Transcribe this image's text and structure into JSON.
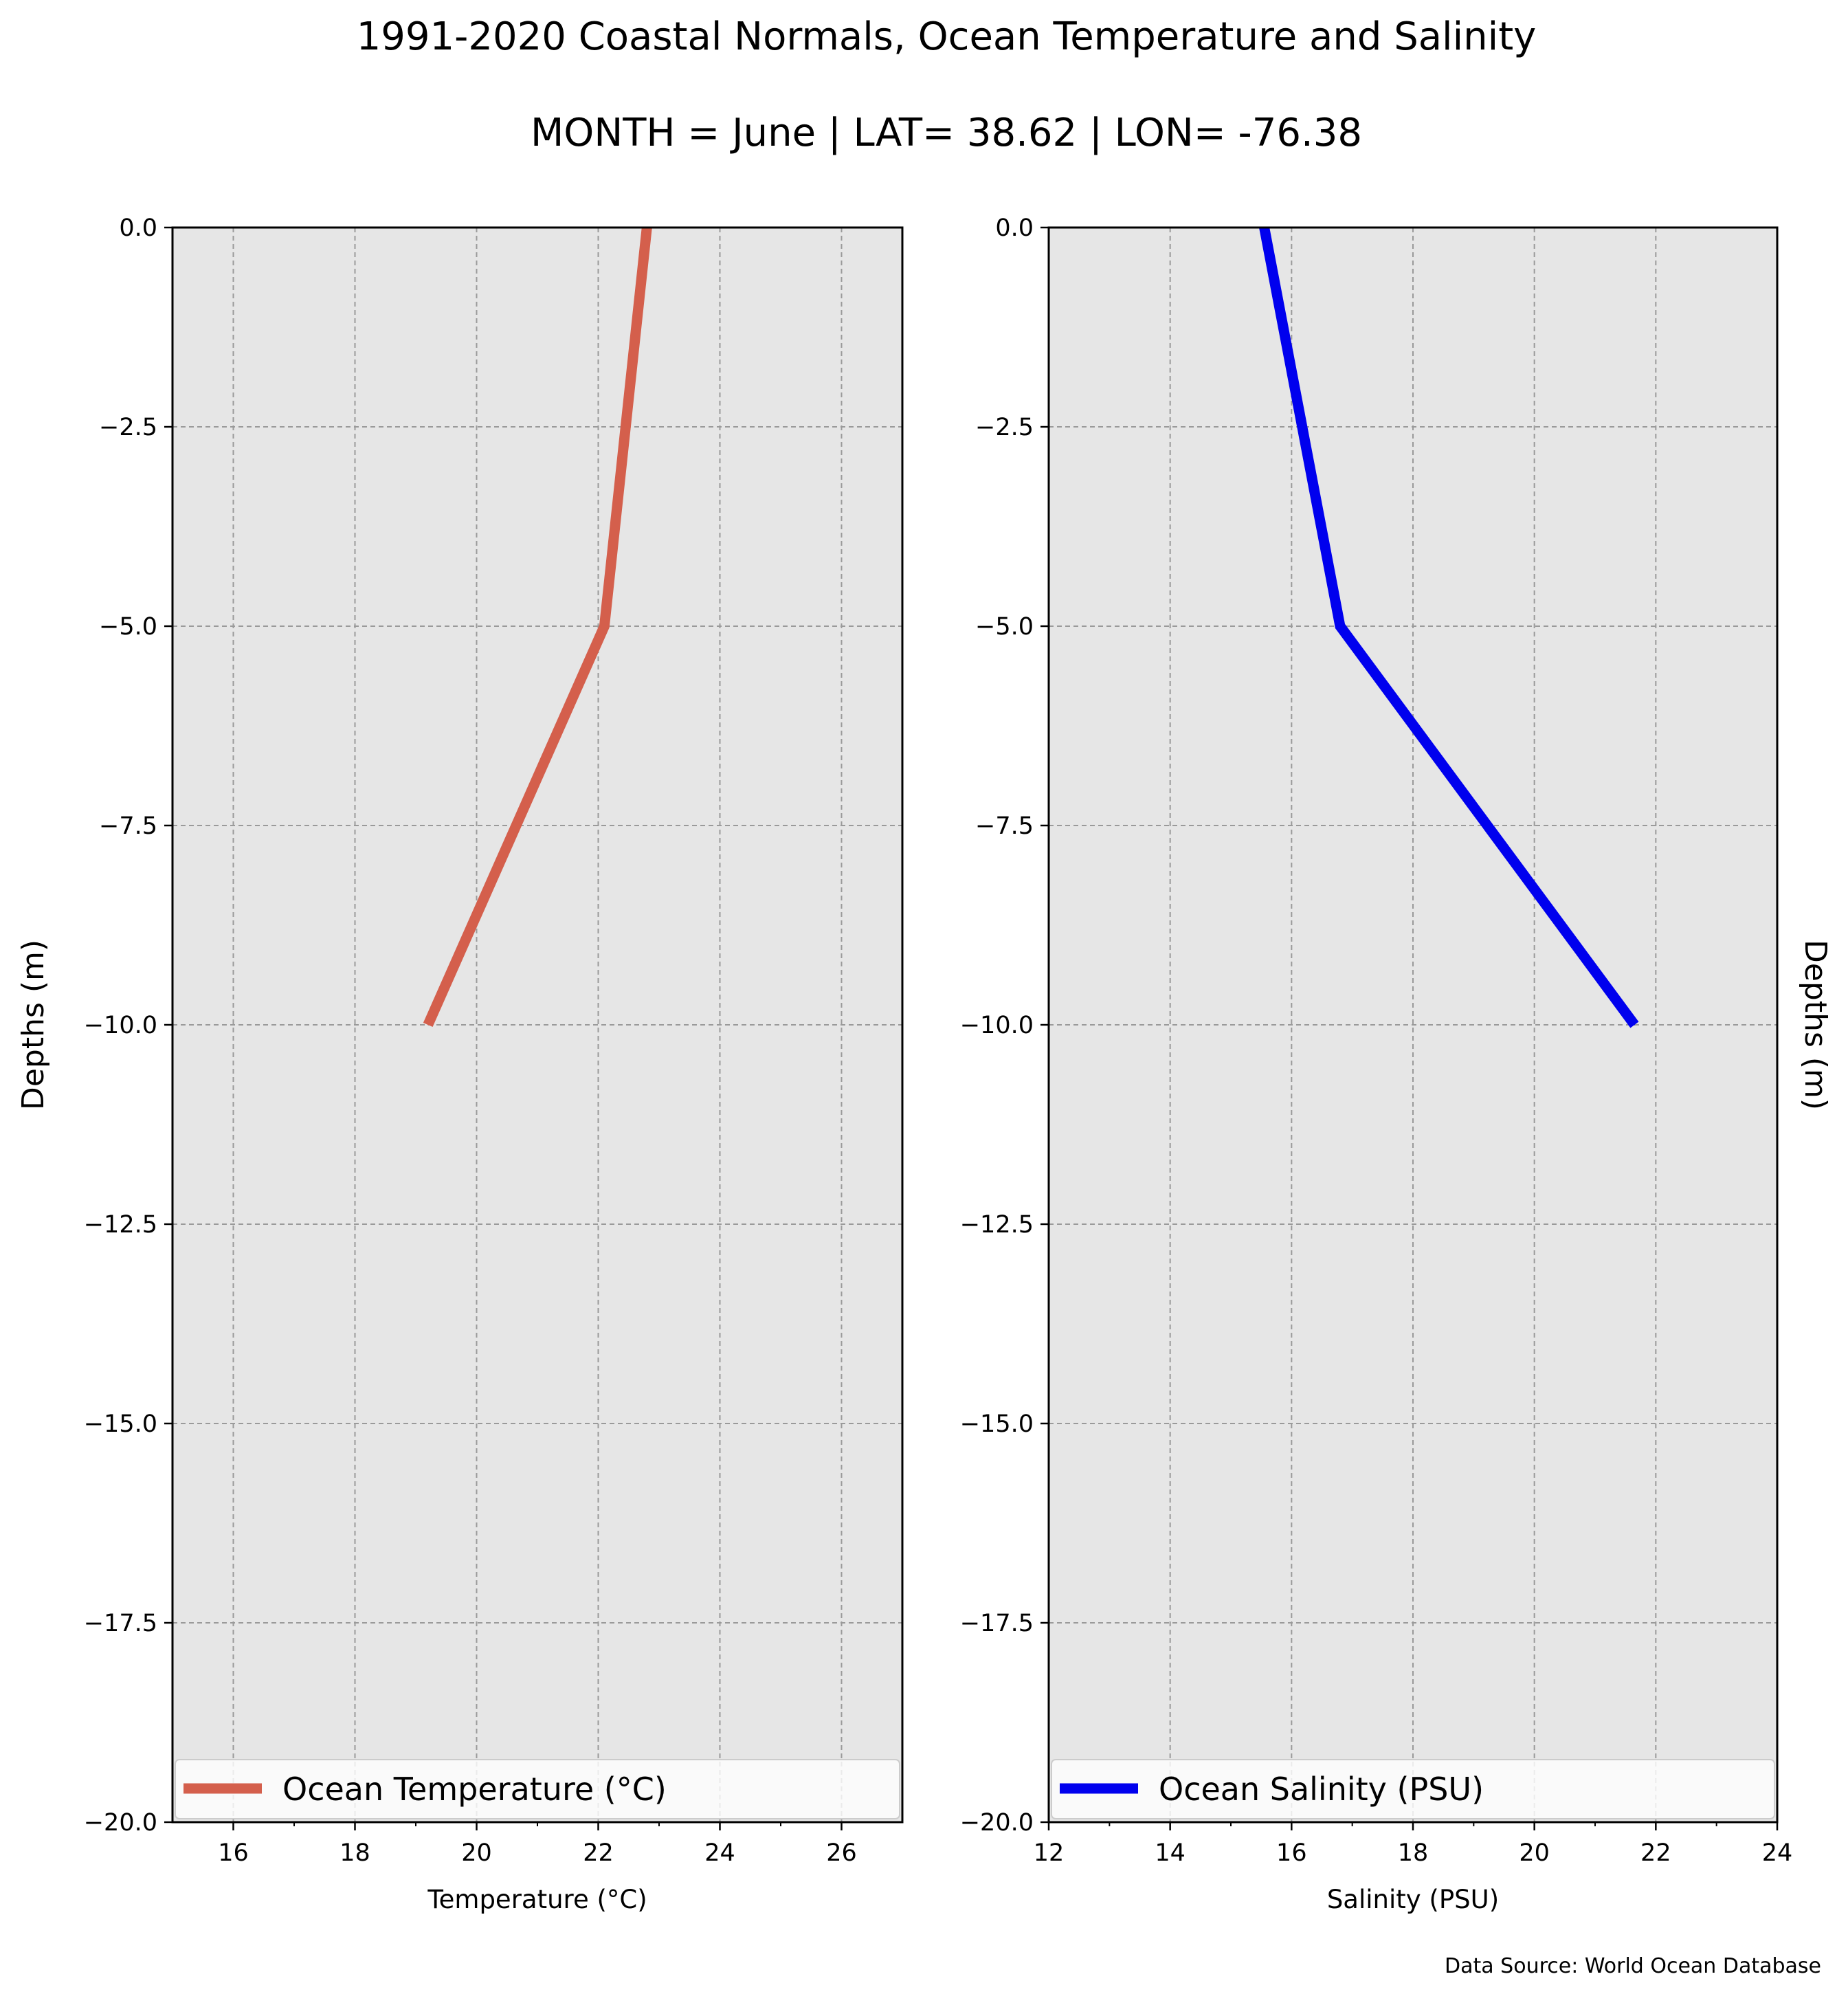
{
  "title": "1991-2020 Coastal Normals, Ocean Temperature and Salinity",
  "subtitle": "MONTH = June | LAT= 38.62 | LON= -76.38",
  "source_note": "Data Source: World Ocean Database",
  "colors": {
    "temperature": "#d45f4c",
    "salinity": "#0000ee",
    "axes_bg": "#e6e6e6",
    "grid": "#9a9a9a"
  },
  "chart_data": [
    {
      "type": "line",
      "xlabel": "Temperature ($^\\circ$C)",
      "xlabel_display": "Temperature (°C)",
      "ylabel": "Depths (m)",
      "ylabel_side": "left",
      "xlim": [
        15,
        27
      ],
      "ylim": [
        -20,
        0
      ],
      "xticks": [
        16,
        18,
        20,
        22,
        24,
        26
      ],
      "xtick_labels": [
        "16",
        "18",
        "20",
        "22",
        "24",
        "26"
      ],
      "x_minor_ticks": [
        17,
        19,
        21,
        23,
        25
      ],
      "yticks": [
        0,
        -2.5,
        -5,
        -7.5,
        -10,
        -12.5,
        -15,
        -17.5,
        -20
      ],
      "ytick_labels": [
        "0.0",
        "−2.5",
        "−5.0",
        "−7.5",
        "−10.0",
        "−12.5",
        "−15.0",
        "−17.5",
        "−20.0"
      ],
      "grid": true,
      "legend": {
        "placement": "bottom",
        "entries": [
          "Ocean Temperature ($^\\circ$C)"
        ],
        "display": "Ocean Temperature (°C)"
      },
      "series": [
        {
          "name": "Ocean Temperature (°C)",
          "color": "#d45f4c",
          "x": [
            22.8,
            22.1,
            19.2
          ],
          "y": [
            0,
            -5,
            -10
          ]
        }
      ]
    },
    {
      "type": "line",
      "xlabel": "Salinity (PSU)",
      "ylabel": "Depths (m)",
      "ylabel_side": "right",
      "xlim": [
        12,
        24
      ],
      "ylim": [
        -20,
        0
      ],
      "xticks": [
        12,
        14,
        16,
        18,
        20,
        22,
        24
      ],
      "xtick_labels": [
        "12",
        "14",
        "16",
        "18",
        "20",
        "22",
        "24"
      ],
      "x_minor_ticks": [
        13,
        15,
        17,
        19,
        21,
        23
      ],
      "yticks": [
        0,
        -2.5,
        -5,
        -7.5,
        -10,
        -12.5,
        -15,
        -17.5,
        -20
      ],
      "ytick_labels": [
        "0.0",
        "−2.5",
        "−5.0",
        "−7.5",
        "−10.0",
        "−12.5",
        "−15.0",
        "−17.5",
        "−20.0"
      ],
      "grid": true,
      "legend": {
        "placement": "bottom",
        "entries": [
          "Ocean Salinity (PSU)"
        ]
      },
      "series": [
        {
          "name": "Ocean Salinity (PSU)",
          "color": "#0000ee",
          "x": [
            15.55,
            16.8,
            21.65
          ],
          "y": [
            0,
            -5,
            -10
          ]
        }
      ]
    }
  ]
}
